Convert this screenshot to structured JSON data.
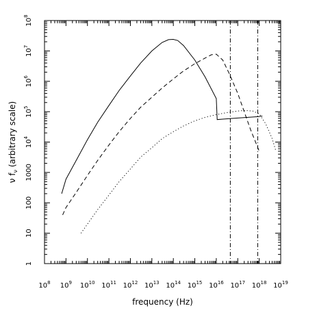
{
  "chart_data": {
    "type": "line",
    "xlabel": "frequency (Hz)",
    "ylabel_parts": [
      "ν f",
      "ν",
      " (arbitrary scale)"
    ],
    "xscale": "log",
    "yscale": "log",
    "xlim": [
      100000000.0,
      1e+19
    ],
    "ylim": [
      1,
      100000000.0
    ],
    "x_tick_labels": [
      {
        "v": 100000000.0,
        "base": "10",
        "exp": "8"
      },
      {
        "v": 1000000000.0,
        "base": "10",
        "exp": "9"
      },
      {
        "v": 10000000000.0,
        "base": "10",
        "exp": "10"
      },
      {
        "v": 100000000000.0,
        "base": "10",
        "exp": "11"
      },
      {
        "v": 1000000000000.0,
        "base": "10",
        "exp": "12"
      },
      {
        "v": 10000000000000.0,
        "base": "10",
        "exp": "13"
      },
      {
        "v": 100000000000000.0,
        "base": "10",
        "exp": "14"
      },
      {
        "v": 1000000000000000.0,
        "base": "10",
        "exp": "15"
      },
      {
        "v": 1e+16,
        "base": "10",
        "exp": "16"
      },
      {
        "v": 1e+17,
        "base": "10",
        "exp": "17"
      },
      {
        "v": 1e+18,
        "base": "10",
        "exp": "18"
      },
      {
        "v": 1e+19,
        "base": "10",
        "exp": "19"
      }
    ],
    "y_tick_labels": [
      {
        "v": 1,
        "base": "1",
        "exp": ""
      },
      {
        "v": 10,
        "base": "10",
        "exp": ""
      },
      {
        "v": 100,
        "base": "100",
        "exp": ""
      },
      {
        "v": 1000,
        "base": "1000",
        "exp": ""
      },
      {
        "v": 10000.0,
        "base": "10",
        "exp": "4"
      },
      {
        "v": 100000.0,
        "base": "10",
        "exp": "5"
      },
      {
        "v": 1000000.0,
        "base": "10",
        "exp": "6"
      },
      {
        "v": 10000000.0,
        "base": "10",
        "exp": "7"
      },
      {
        "v": 100000000.0,
        "base": "10",
        "exp": "8"
      }
    ],
    "series": [
      {
        "style": "solid",
        "x": [
          630000000.0,
          1000000000.0,
          3000000000.0,
          10000000000.0,
          30000000000.0,
          100000000000.0,
          300000000000.0,
          1000000000000.0,
          3000000000000.0,
          10000000000000.0,
          30000000000000.0,
          60000000000000.0,
          100000000000000.0,
          160000000000000.0,
          300000000000000.0,
          1000000000000000.0,
          3000000000000000.0,
          1e+16,
          1.1e+16,
          2e+16,
          1e+17,
          3e+17,
          1e+18,
          1.4e+18
        ],
        "y": [
          200,
          600,
          2500,
          12000.0,
          45000.0,
          160000.0,
          500000.0,
          1500000.0,
          4000000.0,
          10000000.0,
          19000000.0,
          23500000.0,
          24000000.0,
          22000000.0,
          15000000.0,
          5000000.0,
          1400000.0,
          270000.0,
          55000.0,
          57000.0,
          62000.0,
          65000.0,
          69000.0,
          72000.0
        ]
      },
      {
        "style": "dashed",
        "x": [
          700000000.0,
          1000000000.0,
          3000000000.0,
          10000000000.0,
          30000000000.0,
          100000000000.0,
          300000000000.0,
          1000000000000.0,
          3000000000000.0,
          10000000000000.0,
          30000000000000.0,
          100000000000000.0,
          300000000000000.0,
          1000000000000000.0,
          3000000000000000.0,
          6000000000000000.0,
          1e+16,
          2e+16,
          4e+16,
          1e+17,
          2e+17,
          4e+17,
          1e+18
        ],
        "y": [
          40,
          70,
          220,
          800,
          2500,
          8000,
          22000.0,
          60000.0,
          140000.0,
          300000.0,
          600000.0,
          1200000.0,
          2200000.0,
          3800000.0,
          5800000.0,
          7500000.0,
          7800000.0,
          5000000.0,
          1800000.0,
          400000.0,
          100000.0,
          25000.0,
          5000
        ]
      },
      {
        "style": "dotted",
        "x": [
          5000000000.0,
          10000000000.0,
          30000000000.0,
          100000000000.0,
          300000000000.0,
          1000000000000.0,
          3000000000000.0,
          10000000000000.0,
          30000000000000.0,
          100000000000000.0,
          300000000000000.0,
          1000000000000000.0,
          3000000000000000.0,
          1e+16,
          3e+16,
          1e+17,
          2e+17,
          5e+17,
          1e+18,
          2e+18,
          4e+18,
          6e+18
        ],
        "y": [
          10,
          20,
          60,
          180,
          500,
          1300,
          3200,
          6500,
          13000.0,
          22000.0,
          34000.0,
          50000.0,
          65000.0,
          80000.0,
          93000.0,
          105000.0,
          110000.0,
          105000.0,
          85000.0,
          40000.0,
          13000.0,
          5000
        ]
      }
    ],
    "vertical_lines": [
      {
        "x": 4.5e+16,
        "style": "dash-dot"
      },
      {
        "x": 8.5e+17,
        "style": "dash-dot"
      }
    ],
    "grid": false,
    "legend": "none"
  }
}
